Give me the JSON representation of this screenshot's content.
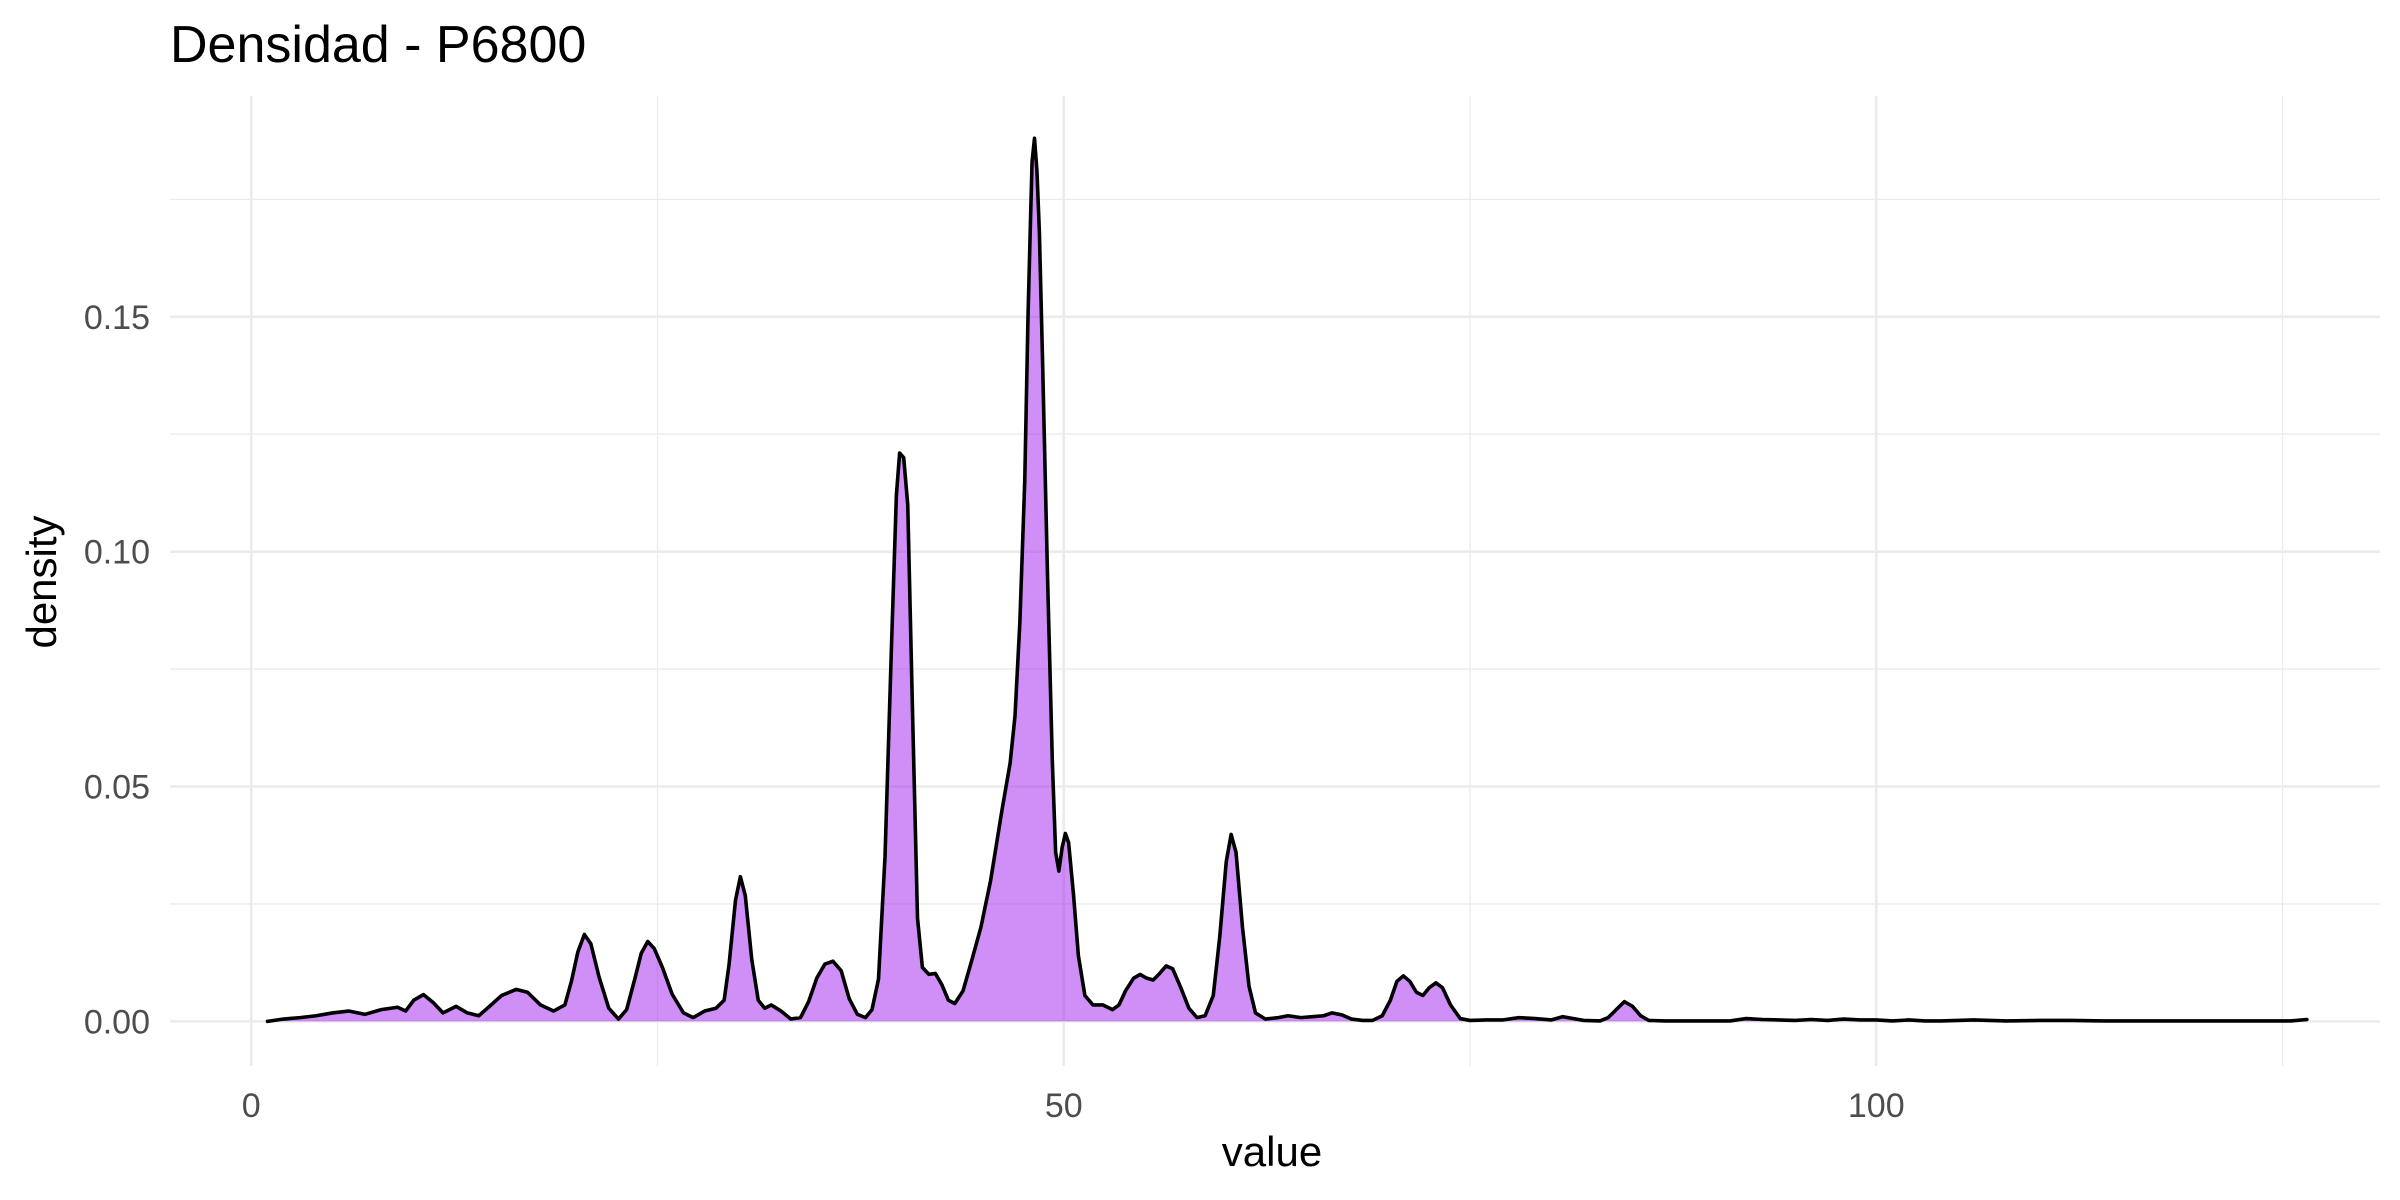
{
  "chart_data": {
    "type": "area",
    "title": "Densidad - P6800",
    "xlabel": "value",
    "ylabel": "density",
    "xlim": [
      -5,
      131
    ],
    "ylim": [
      -0.0095,
      0.197
    ],
    "x_ticks": [
      0,
      50,
      100
    ],
    "x_tick_labels": [
      "0",
      "50",
      "100"
    ],
    "x_minor_ticks": [
      25,
      75,
      125
    ],
    "y_ticks": [
      0.0,
      0.05,
      0.1,
      0.15
    ],
    "y_tick_labels": [
      "0.00",
      "0.05",
      "0.10",
      "0.15"
    ],
    "y_minor_ticks": [
      0.025,
      0.075,
      0.125,
      0.175
    ],
    "grid": true,
    "legend": "none",
    "fill_color": "#a020f0",
    "fill_opacity": 0.5,
    "line_color": "#000000",
    "series": [
      {
        "points": [
          [
            1,
            0.0
          ],
          [
            2,
            0.0005
          ],
          [
            3,
            0.0008
          ],
          [
            4,
            0.0012
          ],
          [
            5,
            0.0018
          ],
          [
            6,
            0.0022
          ],
          [
            7,
            0.0015
          ],
          [
            8,
            0.0025
          ],
          [
            9,
            0.003
          ],
          [
            9.5,
            0.0022
          ],
          [
            10,
            0.0045
          ],
          [
            10.6,
            0.0057
          ],
          [
            11.2,
            0.004
          ],
          [
            11.8,
            0.0018
          ],
          [
            12.6,
            0.0032
          ],
          [
            13.3,
            0.0018
          ],
          [
            14,
            0.0012
          ],
          [
            14.6,
            0.003
          ],
          [
            15.4,
            0.0055
          ],
          [
            16.3,
            0.0068
          ],
          [
            17,
            0.0062
          ],
          [
            17.8,
            0.0035
          ],
          [
            18.6,
            0.0022
          ],
          [
            19.3,
            0.0035
          ],
          [
            19.7,
            0.0085
          ],
          [
            20.1,
            0.0148
          ],
          [
            20.5,
            0.0185
          ],
          [
            20.9,
            0.0165
          ],
          [
            21.4,
            0.0095
          ],
          [
            22,
            0.0028
          ],
          [
            22.6,
            0.0005
          ],
          [
            23.1,
            0.0025
          ],
          [
            23.6,
            0.009
          ],
          [
            24,
            0.0145
          ],
          [
            24.4,
            0.017
          ],
          [
            24.8,
            0.0155
          ],
          [
            25.3,
            0.0115
          ],
          [
            25.9,
            0.0058
          ],
          [
            26.6,
            0.0018
          ],
          [
            27.2,
            0.0008
          ],
          [
            27.9,
            0.0022
          ],
          [
            28.6,
            0.0028
          ],
          [
            29.1,
            0.0045
          ],
          [
            29.4,
            0.012
          ],
          [
            29.8,
            0.0258
          ],
          [
            30.1,
            0.0308
          ],
          [
            30.4,
            0.0268
          ],
          [
            30.8,
            0.0132
          ],
          [
            31.2,
            0.0045
          ],
          [
            31.6,
            0.0028
          ],
          [
            32,
            0.0035
          ],
          [
            32.6,
            0.0022
          ],
          [
            33.2,
            0.0005
          ],
          [
            33.8,
            0.0008
          ],
          [
            34.3,
            0.0042
          ],
          [
            34.8,
            0.0092
          ],
          [
            35.3,
            0.0122
          ],
          [
            35.8,
            0.0128
          ],
          [
            36.3,
            0.0108
          ],
          [
            36.8,
            0.0048
          ],
          [
            37.3,
            0.0015
          ],
          [
            37.8,
            0.0008
          ],
          [
            38.2,
            0.0025
          ],
          [
            38.6,
            0.009
          ],
          [
            39,
            0.035
          ],
          [
            39.4,
            0.08
          ],
          [
            39.7,
            0.112
          ],
          [
            39.9,
            0.121
          ],
          [
            40.15,
            0.12
          ],
          [
            40.4,
            0.11
          ],
          [
            40.7,
            0.065
          ],
          [
            41,
            0.022
          ],
          [
            41.3,
            0.0115
          ],
          [
            41.7,
            0.01
          ],
          [
            42.1,
            0.0102
          ],
          [
            42.5,
            0.0078
          ],
          [
            42.9,
            0.0045
          ],
          [
            43.3,
            0.0038
          ],
          [
            43.8,
            0.0065
          ],
          [
            44.3,
            0.0125
          ],
          [
            44.9,
            0.02
          ],
          [
            45.5,
            0.03
          ],
          [
            46.2,
            0.045
          ],
          [
            46.7,
            0.055
          ],
          [
            47,
            0.065
          ],
          [
            47.3,
            0.085
          ],
          [
            47.6,
            0.115
          ],
          [
            47.8,
            0.15
          ],
          [
            47.95,
            0.17
          ],
          [
            48.05,
            0.183
          ],
          [
            48.2,
            0.188
          ],
          [
            48.35,
            0.181
          ],
          [
            48.5,
            0.168
          ],
          [
            48.7,
            0.14
          ],
          [
            49,
            0.095
          ],
          [
            49.3,
            0.055
          ],
          [
            49.5,
            0.036
          ],
          [
            49.7,
            0.032
          ],
          [
            49.9,
            0.037
          ],
          [
            50.1,
            0.04
          ],
          [
            50.3,
            0.038
          ],
          [
            50.6,
            0.027
          ],
          [
            50.9,
            0.014
          ],
          [
            51.3,
            0.0055
          ],
          [
            51.8,
            0.0035
          ],
          [
            52.4,
            0.0035
          ],
          [
            53,
            0.0025
          ],
          [
            53.4,
            0.0035
          ],
          [
            53.8,
            0.0065
          ],
          [
            54.3,
            0.0092
          ],
          [
            54.7,
            0.01
          ],
          [
            55.1,
            0.0092
          ],
          [
            55.5,
            0.0088
          ],
          [
            55.9,
            0.0102
          ],
          [
            56.3,
            0.0118
          ],
          [
            56.7,
            0.0112
          ],
          [
            57.2,
            0.0072
          ],
          [
            57.7,
            0.0028
          ],
          [
            58.2,
            0.0008
          ],
          [
            58.7,
            0.0012
          ],
          [
            59.2,
            0.0055
          ],
          [
            59.6,
            0.018
          ],
          [
            60,
            0.034
          ],
          [
            60.3,
            0.0398
          ],
          [
            60.6,
            0.036
          ],
          [
            61,
            0.02
          ],
          [
            61.4,
            0.0075
          ],
          [
            61.8,
            0.0018
          ],
          [
            62.4,
            0.0005
          ],
          [
            63.2,
            0.0008
          ],
          [
            63.8,
            0.0012
          ],
          [
            64.6,
            0.0008
          ],
          [
            65.3,
            0.001
          ],
          [
            66,
            0.0012
          ],
          [
            66.5,
            0.0018
          ],
          [
            67.1,
            0.0014
          ],
          [
            67.7,
            0.0005
          ],
          [
            68.4,
            0.0002
          ],
          [
            69,
            0.0002
          ],
          [
            69.6,
            0.0012
          ],
          [
            70.1,
            0.0045
          ],
          [
            70.5,
            0.0085
          ],
          [
            70.9,
            0.0097
          ],
          [
            71.3,
            0.0085
          ],
          [
            71.7,
            0.0062
          ],
          [
            72.1,
            0.0055
          ],
          [
            72.5,
            0.0072
          ],
          [
            72.9,
            0.0082
          ],
          [
            73.3,
            0.0072
          ],
          [
            73.8,
            0.0035
          ],
          [
            74.4,
            0.0006
          ],
          [
            75,
            0.0002
          ],
          [
            76,
            0.0003
          ],
          [
            77,
            0.0003
          ],
          [
            78,
            0.0008
          ],
          [
            79,
            0.0006
          ],
          [
            80,
            0.0003
          ],
          [
            80.7,
            0.001
          ],
          [
            81.2,
            0.0007
          ],
          [
            82,
            0.0002
          ],
          [
            83,
            0.0001
          ],
          [
            83.5,
            0.0008
          ],
          [
            84,
            0.0025
          ],
          [
            84.5,
            0.0042
          ],
          [
            85,
            0.0032
          ],
          [
            85.5,
            0.0012
          ],
          [
            86,
            0.0002
          ],
          [
            87,
            0.0001
          ],
          [
            89,
            0.0001
          ],
          [
            91,
            0.0001
          ],
          [
            92,
            0.0006
          ],
          [
            93,
            0.0004
          ],
          [
            95,
            0.0002
          ],
          [
            96,
            0.0004
          ],
          [
            97,
            0.0002
          ],
          [
            98,
            0.0005
          ],
          [
            99,
            0.0003
          ],
          [
            100,
            0.0003
          ],
          [
            101,
            0.0001
          ],
          [
            102,
            0.0003
          ],
          [
            103,
            0.0001
          ],
          [
            104,
            0.0001
          ],
          [
            105,
            0.0002
          ],
          [
            106,
            0.0003
          ],
          [
            107,
            0.0002
          ],
          [
            108,
            0.0001
          ],
          [
            110,
            0.0002
          ],
          [
            112,
            0.0002
          ],
          [
            114,
            0.0001
          ],
          [
            116,
            0.0001
          ],
          [
            118,
            0.0001
          ],
          [
            120,
            0.0001
          ],
          [
            122,
            0.0001
          ],
          [
            124,
            0.0001
          ],
          [
            125.5,
            0.0001
          ],
          [
            126.5,
            0.0004
          ]
        ]
      }
    ]
  }
}
